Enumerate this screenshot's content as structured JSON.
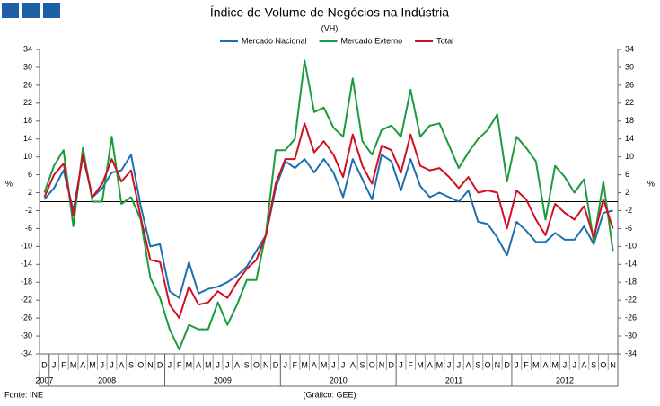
{
  "chart_data": {
    "type": "line",
    "title": "Índice de Volume de Negócios na Indústria",
    "subtitle": "(VH)",
    "y_label": "%",
    "y2_label": "%",
    "source": "Fonte: INE",
    "credit": "(Gráfico: GEE)",
    "categories": [
      "D",
      "J",
      "F",
      "M",
      "A",
      "M",
      "J",
      "J",
      "A",
      "S",
      "O",
      "N",
      "D",
      "J",
      "F",
      "M",
      "A",
      "M",
      "J",
      "J",
      "A",
      "S",
      "O",
      "N",
      "D",
      "J",
      "F",
      "M",
      "A",
      "M",
      "J",
      "J",
      "A",
      "S",
      "O",
      "N",
      "D",
      "J",
      "F",
      "M",
      "A",
      "M",
      "J",
      "J",
      "A",
      "S",
      "O",
      "N",
      "D",
      "J",
      "F",
      "M",
      "A",
      "M",
      "J",
      "J",
      "A",
      "S",
      "O",
      "N"
    ],
    "years": [
      "2007",
      "2008",
      "2009",
      "2010",
      "2011",
      "2012"
    ],
    "series": [
      {
        "name": "Mercado Nacional",
        "color": "#1f6fb0",
        "values": [
          0.5,
          3,
          7,
          -2,
          10,
          1,
          3,
          6.5,
          7,
          10.5,
          -1,
          -10,
          -9.5,
          -20,
          -21.5,
          -13.5,
          -20.5,
          -19.5,
          -19,
          -18,
          -16.5,
          -14.5,
          -11,
          -7.5,
          3,
          9,
          7.5,
          9.5,
          6.5,
          9.5,
          6.5,
          1,
          9.5,
          5,
          0.5,
          10.5,
          9,
          2.5,
          9.5,
          3.5,
          1,
          2,
          1,
          0,
          2.5,
          -4.5,
          -5,
          -8,
          -12,
          -4.5,
          -6.5,
          -9,
          -9,
          -7,
          -8.5,
          -8.5,
          -5.5,
          -9.5,
          -2.5,
          -2
        ]
      },
      {
        "name": "Mercado Externo",
        "color": "#1a9b3c",
        "values": [
          2,
          8,
          11.5,
          -5.5,
          12,
          0,
          0,
          14.5,
          -0.5,
          1,
          -4,
          -17,
          -21.5,
          -28.5,
          -33,
          -27.5,
          -28.5,
          -28.5,
          -22.5,
          -27.5,
          -23,
          -17.5,
          -17.5,
          -7,
          11.5,
          11.5,
          14,
          31.5,
          20,
          21,
          16.5,
          14.5,
          27.5,
          13.5,
          10.5,
          16,
          17,
          14.5,
          25,
          14.5,
          17,
          17.5,
          12.5,
          7.5,
          11,
          14,
          16,
          19.5,
          4.5,
          14.5,
          12,
          9,
          -4,
          8,
          5.5,
          2,
          5,
          -9,
          4.5,
          -11
        ]
      },
      {
        "name": "Total",
        "color": "#d01020",
        "values": [
          1,
          6,
          8.5,
          -3,
          10.5,
          1,
          4,
          9.5,
          4.5,
          7,
          -3.5,
          -13,
          -13.5,
          -23,
          -26,
          -19,
          -23,
          -22.5,
          -20,
          -21.5,
          -18,
          -15,
          -13,
          -7.5,
          4,
          9.5,
          9.5,
          17.5,
          11,
          13.5,
          10.5,
          5.5,
          15,
          8,
          4,
          12.5,
          11.5,
          6.5,
          15,
          8,
          7,
          7.5,
          5.5,
          3,
          5.5,
          2,
          2.5,
          2,
          -6,
          2.5,
          0.5,
          -4,
          -7.5,
          -0.5,
          -2.5,
          -4,
          -1,
          -8,
          0.5,
          -6
        ]
      }
    ],
    "ylim": [
      -34,
      34
    ],
    "yticks": [
      -34,
      -30,
      -26,
      -22,
      -18,
      -14,
      -10,
      -6,
      -2,
      2,
      6,
      10,
      14,
      18,
      22,
      26,
      30,
      34
    ],
    "y2lim": [
      -34,
      34
    ],
    "y2ticks": [
      -34,
      -30,
      -26,
      -22,
      -18,
      -14,
      -10,
      -6,
      -2,
      2,
      6,
      10,
      14,
      18,
      22,
      26,
      30,
      34
    ],
    "legend": "top"
  }
}
